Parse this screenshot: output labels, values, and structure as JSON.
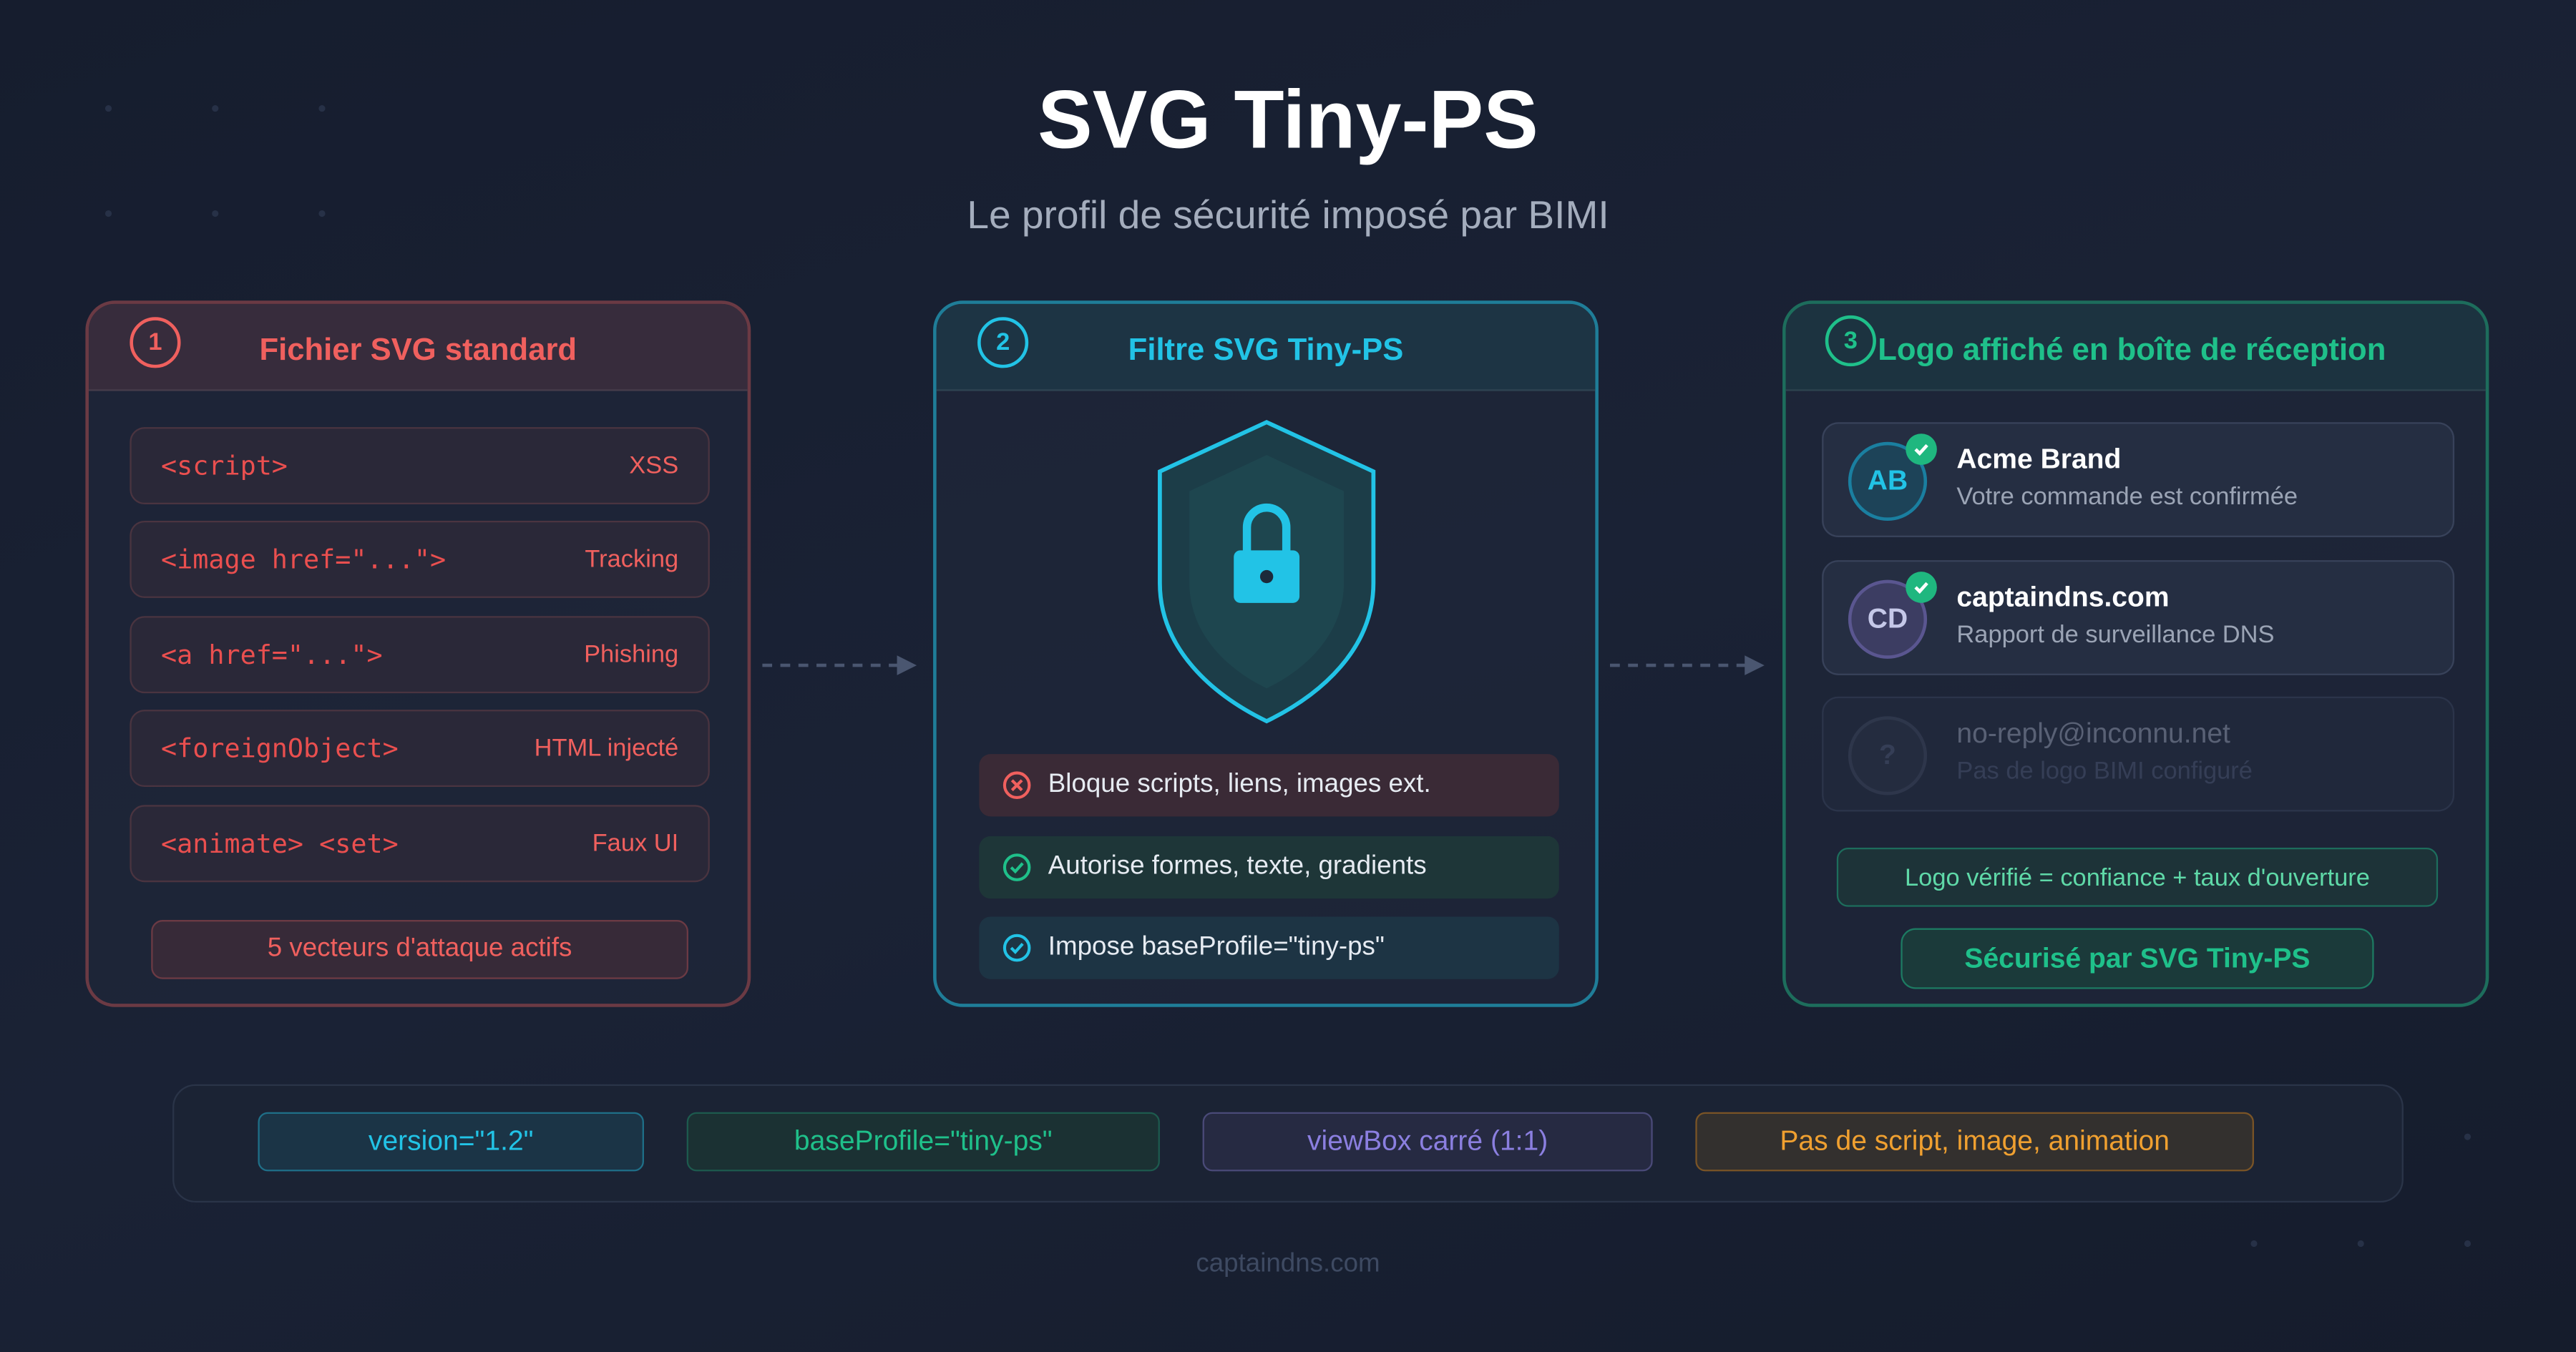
{
  "header": {
    "title": "SVG Tiny-PS",
    "subtitle": "Le profil de sécurité imposé par BIMI"
  },
  "panel1": {
    "number": "1",
    "title": "Fichier SVG standard",
    "color": "#f0605e",
    "rows": [
      {
        "code": "<script>",
        "label": "XSS"
      },
      {
        "code": "<image href=\"...\">",
        "label": "Tracking"
      },
      {
        "code": "<a href=\"...\">",
        "label": "Phishing"
      },
      {
        "code": "<foreignObject>",
        "label": "HTML injecté"
      },
      {
        "code": "<animate> <set>",
        "label": "Faux UI"
      }
    ],
    "summary": "5 vecteurs d'attaque actifs"
  },
  "panel2": {
    "number": "2",
    "title": "Filtre SVG Tiny-PS",
    "color": "#22c3e6",
    "items": [
      {
        "icon": "x-circle-icon",
        "text": "Bloque scripts, liens, images ext."
      },
      {
        "icon": "check-circle-icon",
        "text": "Autorise formes, texte, gradients"
      },
      {
        "icon": "check-circle-icon",
        "text": "Impose baseProfile=\"tiny-ps\""
      }
    ]
  },
  "panel3": {
    "number": "3",
    "title": "Logo affiché en boîte de réception",
    "color": "#1fc08a",
    "emails": [
      {
        "initials": "AB",
        "sender": "Acme Brand",
        "subject": "Votre commande est confirmée",
        "verified": true
      },
      {
        "initials": "CD",
        "sender": "captaindns.com",
        "subject": "Rapport de surveillance DNS",
        "verified": true
      },
      {
        "initials": "?",
        "sender": "no-reply@inconnu.net",
        "subject": "Pas de logo BIMI configuré",
        "verified": false
      }
    ],
    "note": "Logo vérifié = confiance + taux d'ouverture",
    "secured": "Sécurisé par SVG Tiny-PS"
  },
  "requirements": [
    {
      "text": "version=\"1.2\"",
      "color": "#22c3e6"
    },
    {
      "text": "baseProfile=\"tiny-ps\"",
      "color": "#1fc08a"
    },
    {
      "text": "viewBox carré (1:1)",
      "color": "#8b7fe0"
    },
    {
      "text": "Pas de script, image, animation",
      "color": "#f0a030"
    }
  ],
  "footer": "captaindns.com"
}
